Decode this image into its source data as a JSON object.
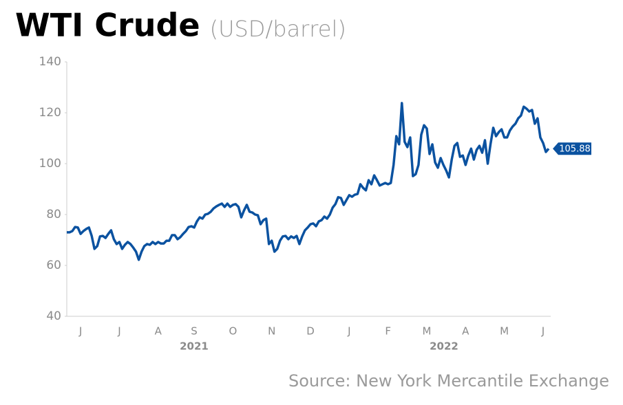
{
  "chart_data": {
    "type": "line",
    "title": "WTI Crude",
    "subtitle": "(USD/barrel)",
    "source": "Source: New York Mercantile Exchange",
    "categories": [
      null,
      null,
      null,
      null,
      null,
      "J",
      null,
      null,
      null,
      null,
      null,
      null,
      null,
      null,
      null,
      null,
      null,
      null,
      null,
      "J",
      null,
      null,
      null,
      null,
      null,
      null,
      null,
      null,
      null,
      null,
      null,
      null,
      null,
      "A",
      null,
      null,
      null,
      null,
      null,
      null,
      null,
      null,
      null,
      null,
      null,
      null,
      "S",
      null,
      null,
      null,
      null,
      null,
      null,
      null,
      null,
      null,
      null,
      null,
      null,
      null,
      "O",
      null,
      null,
      null,
      null,
      null,
      null,
      null,
      null,
      null,
      null,
      null,
      null,
      null,
      "N",
      null,
      null,
      null,
      null,
      null,
      null,
      null,
      null,
      null,
      null,
      null,
      null,
      null,
      "D",
      null,
      null,
      null,
      null,
      null,
      null,
      null,
      null,
      null,
      null,
      null,
      null,
      null,
      "J",
      null,
      null,
      null,
      null,
      null,
      null,
      null,
      null,
      null,
      null,
      null,
      null,
      null,
      "F",
      null,
      null,
      null,
      null,
      null,
      null,
      null,
      null,
      null,
      null,
      null,
      null,
      null,
      "M",
      null,
      null,
      null,
      null,
      null,
      null,
      null,
      null,
      null,
      null,
      null,
      null,
      null,
      "A",
      null,
      null,
      null,
      null,
      null,
      null,
      null,
      null,
      null,
      null,
      null,
      null,
      null,
      "M",
      null,
      null,
      null,
      null,
      null,
      null,
      null,
      null,
      null,
      null,
      null,
      null,
      null,
      "J",
      null,
      null
    ],
    "years": [
      "2021",
      "2022"
    ],
    "series": [
      {
        "name": "WTI Crude",
        "color": "#0b52a0",
        "values": [
          73.0,
          73.0,
          73.5,
          75.1,
          74.9,
          72.4,
          73.5,
          74.3,
          74.9,
          71.6,
          66.5,
          67.6,
          71.4,
          71.6,
          70.8,
          72.4,
          73.8,
          70.3,
          68.4,
          69.2,
          66.5,
          68.1,
          69.2,
          68.4,
          67.0,
          65.4,
          62.2,
          65.4,
          67.6,
          68.4,
          68.1,
          69.2,
          68.4,
          69.2,
          68.6,
          68.6,
          69.7,
          69.7,
          71.9,
          71.9,
          70.3,
          71.1,
          72.4,
          73.5,
          75.1,
          75.4,
          74.9,
          77.3,
          78.9,
          78.4,
          80.0,
          80.3,
          81.1,
          82.4,
          83.2,
          83.8,
          84.3,
          83.0,
          84.3,
          83.0,
          83.8,
          84.1,
          83.0,
          78.9,
          81.6,
          83.8,
          81.1,
          80.8,
          80.0,
          79.7,
          76.2,
          77.8,
          78.4,
          68.4,
          69.7,
          65.4,
          66.5,
          69.7,
          71.4,
          71.6,
          70.3,
          71.4,
          70.8,
          71.6,
          68.4,
          71.4,
          73.8,
          74.9,
          76.2,
          76.5,
          75.4,
          77.3,
          77.8,
          79.2,
          78.4,
          80.0,
          82.7,
          84.1,
          86.8,
          86.5,
          83.8,
          85.7,
          87.6,
          87.0,
          87.8,
          88.1,
          91.9,
          90.5,
          89.5,
          93.5,
          91.9,
          95.4,
          93.5,
          91.4,
          91.9,
          92.4,
          91.9,
          92.4,
          99.5,
          110.8,
          107.6,
          123.8,
          108.6,
          106.5,
          110.3,
          95.1,
          95.9,
          99.5,
          111.4,
          115.1,
          113.8,
          103.8,
          107.6,
          100.5,
          98.4,
          102.2,
          99.5,
          97.3,
          94.6,
          101.6,
          107.0,
          108.1,
          102.7,
          103.2,
          99.5,
          103.2,
          105.9,
          101.6,
          105.4,
          107.0,
          104.3,
          109.2,
          100.0,
          107.6,
          114.1,
          110.8,
          112.4,
          113.5,
          110.3,
          110.3,
          113.0,
          114.6,
          115.7,
          117.8,
          118.9,
          122.4,
          121.6,
          120.5,
          121.1,
          115.7,
          117.8,
          110.3,
          108.1,
          104.6,
          105.88
        ]
      }
    ],
    "ylim": [
      40,
      140
    ],
    "yticks": [
      40,
      60,
      80,
      100,
      120,
      140
    ],
    "grid": false
  }
}
